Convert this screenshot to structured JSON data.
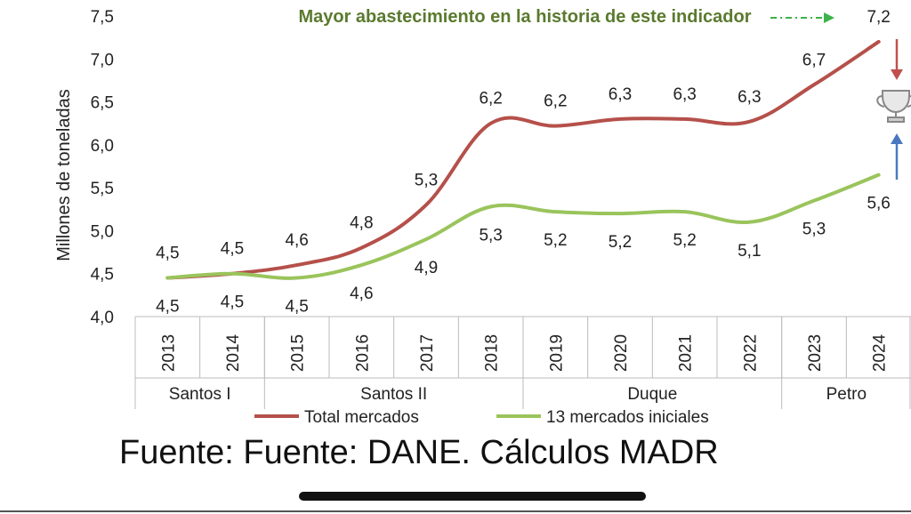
{
  "chart_data": {
    "type": "line",
    "title": "",
    "annotation": "Mayor abastecimiento en la historia de este indicador",
    "ylabel": "Millones de toneladas",
    "xlabel": "",
    "ylim": [
      4.0,
      7.5
    ],
    "yticks": [
      "4,0",
      "4,5",
      "5,0",
      "5,5",
      "6,0",
      "6,5",
      "7,0",
      "7,5"
    ],
    "ytick_values": [
      4.0,
      4.5,
      5.0,
      5.5,
      6.0,
      6.5,
      7.0,
      7.5
    ],
    "categories": [
      "2013",
      "2014",
      "2015",
      "2016",
      "2017",
      "2018",
      "2019",
      "2020",
      "2021",
      "2022",
      "2023",
      "2024"
    ],
    "groups": [
      {
        "label": "Santos I",
        "count": 2
      },
      {
        "label": "Santos II",
        "count": 4
      },
      {
        "label": "Duque",
        "count": 4
      },
      {
        "label": "Petro",
        "count": 2
      }
    ],
    "series": [
      {
        "name": "Total mercados",
        "color": "#b5504a",
        "values": [
          4.45,
          4.5,
          4.6,
          4.8,
          5.3,
          6.25,
          6.22,
          6.3,
          6.3,
          6.27,
          6.7,
          7.2
        ],
        "labels": [
          "4,5",
          "4,5",
          "4,6",
          "4,8",
          "5,3",
          "6,2",
          "6,2",
          "6,3",
          "6,3",
          "6,3",
          "6,7",
          "7,2"
        ]
      },
      {
        "name": "13 mercados iniciales",
        "color": "#9ac45c",
        "values": [
          4.45,
          4.5,
          4.45,
          4.6,
          4.9,
          5.28,
          5.22,
          5.2,
          5.22,
          5.1,
          5.35,
          5.65
        ],
        "labels": [
          "4,5",
          "4,5",
          "4,5",
          "4,6",
          "4,9",
          "5,3",
          "5,2",
          "5,2",
          "5,2",
          "5,1",
          "5,3",
          "5,6"
        ]
      }
    ],
    "legend_position": "bottom",
    "colors": {
      "annotation_text": "#5a7a2e",
      "arrow_green": "#3bb24a",
      "arrow_red": "#c0504d",
      "arrow_blue": "#4a78c0"
    }
  },
  "footer": {
    "source_text": "Fuente: Fuente: DANE. Cálculos MADR"
  }
}
